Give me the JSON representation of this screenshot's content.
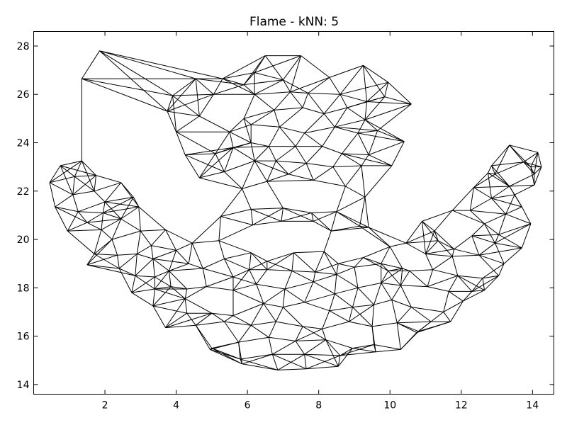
{
  "chart_data": {
    "type": "graph",
    "title": "Flame - kNN: 5",
    "xlabel": "",
    "ylabel": "",
    "xlim": [
      0.0,
      14.6
    ],
    "ylim": [
      13.6,
      28.6
    ],
    "x_ticks": [
      2,
      4,
      6,
      8,
      10,
      12,
      14
    ],
    "y_ticks": [
      14,
      16,
      18,
      20,
      22,
      24,
      26,
      28
    ],
    "grid": false,
    "legend": "none",
    "edge_color": "#000000",
    "nodes": [
      [
        1.85,
        27.8
      ],
      [
        1.35,
        26.65
      ],
      [
        5.3,
        26.65
      ],
      [
        6.5,
        27.6
      ],
      [
        7.5,
        27.6
      ],
      [
        6.2,
        26.9
      ],
      [
        9.25,
        27.2
      ],
      [
        9.95,
        26.5
      ],
      [
        10.6,
        25.6
      ],
      [
        8.3,
        26.7
      ],
      [
        7.0,
        26.6
      ],
      [
        5.9,
        26.4
      ],
      [
        3.9,
        25.95
      ],
      [
        4.55,
        26.65
      ],
      [
        5.05,
        26.0
      ],
      [
        6.2,
        26.0
      ],
      [
        7.2,
        26.1
      ],
      [
        7.7,
        26.05
      ],
      [
        8.6,
        26.0
      ],
      [
        9.35,
        25.7
      ],
      [
        9.85,
        25.9
      ],
      [
        10.4,
        24.05
      ],
      [
        3.75,
        25.3
      ],
      [
        4.65,
        25.1
      ],
      [
        5.9,
        25.0
      ],
      [
        6.75,
        25.35
      ],
      [
        7.55,
        25.45
      ],
      [
        8.15,
        25.2
      ],
      [
        8.8,
        25.45
      ],
      [
        9.3,
        24.95
      ],
      [
        9.65,
        24.5
      ],
      [
        4.0,
        24.45
      ],
      [
        5.5,
        24.45
      ],
      [
        6.1,
        24.75
      ],
      [
        6.9,
        24.65
      ],
      [
        7.6,
        24.4
      ],
      [
        8.45,
        24.65
      ],
      [
        9.1,
        24.4
      ],
      [
        4.25,
        23.5
      ],
      [
        5.1,
        23.55
      ],
      [
        5.6,
        23.8
      ],
      [
        6.1,
        24.0
      ],
      [
        6.6,
        23.85
      ],
      [
        7.35,
        23.85
      ],
      [
        8.1,
        23.85
      ],
      [
        8.65,
        23.55
      ],
      [
        9.4,
        23.5
      ],
      [
        10.05,
        23.05
      ],
      [
        4.65,
        22.55
      ],
      [
        5.35,
        22.8
      ],
      [
        6.2,
        23.25
      ],
      [
        6.8,
        23.25
      ],
      [
        7.65,
        23.15
      ],
      [
        8.4,
        23.0
      ],
      [
        9.2,
        23.05
      ],
      [
        5.85,
        22.1
      ],
      [
        6.55,
        22.4
      ],
      [
        7.15,
        22.7
      ],
      [
        7.85,
        22.45
      ],
      [
        8.75,
        22.2
      ],
      [
        9.3,
        21.75
      ],
      [
        0.45,
        22.35
      ],
      [
        0.75,
        23.05
      ],
      [
        1.35,
        23.25
      ],
      [
        1.15,
        22.6
      ],
      [
        1.75,
        22.65
      ],
      [
        2.45,
        22.35
      ],
      [
        1.7,
        22.0
      ],
      [
        1.1,
        21.85
      ],
      [
        2.0,
        21.55
      ],
      [
        2.8,
        21.75
      ],
      [
        0.6,
        21.35
      ],
      [
        1.25,
        21.15
      ],
      [
        1.95,
        21.1
      ],
      [
        2.95,
        21.35
      ],
      [
        1.5,
        20.7
      ],
      [
        2.45,
        20.85
      ],
      [
        0.95,
        20.35
      ],
      [
        1.9,
        20.4
      ],
      [
        2.2,
        20.0
      ],
      [
        3.0,
        20.35
      ],
      [
        3.7,
        20.4
      ],
      [
        3.3,
        19.75
      ],
      [
        4.0,
        19.55
      ],
      [
        1.7,
        19.4
      ],
      [
        2.35,
        19.35
      ],
      [
        2.9,
        19.4
      ],
      [
        3.35,
        19.2
      ],
      [
        4.35,
        19.0
      ],
      [
        1.5,
        18.95
      ],
      [
        2.4,
        18.8
      ],
      [
        3.8,
        18.7
      ],
      [
        2.85,
        18.5
      ],
      [
        3.4,
        18.45
      ],
      [
        3.85,
        18.05
      ],
      [
        2.75,
        17.8
      ],
      [
        3.4,
        17.95
      ],
      [
        4.3,
        17.95
      ],
      [
        3.35,
        17.25
      ],
      [
        4.25,
        17.55
      ],
      [
        5.25,
        20.95
      ],
      [
        6.1,
        21.25
      ],
      [
        7.0,
        21.3
      ],
      [
        7.8,
        21.1
      ],
      [
        8.5,
        21.15
      ],
      [
        5.2,
        19.95
      ],
      [
        6.15,
        20.6
      ],
      [
        6.95,
        20.75
      ],
      [
        7.85,
        20.75
      ],
      [
        8.35,
        20.35
      ],
      [
        9.15,
        20.55
      ],
      [
        9.4,
        20.5
      ],
      [
        4.45,
        19.85
      ],
      [
        5.35,
        19.2
      ],
      [
        6.1,
        19.45
      ],
      [
        6.55,
        19.1
      ],
      [
        7.3,
        19.45
      ],
      [
        8.15,
        19.5
      ],
      [
        8.55,
        19.0
      ],
      [
        9.25,
        19.25
      ],
      [
        4.75,
        18.8
      ],
      [
        5.6,
        18.45
      ],
      [
        6.05,
        18.75
      ],
      [
        6.55,
        18.75
      ],
      [
        7.25,
        18.7
      ],
      [
        7.9,
        18.65
      ],
      [
        8.5,
        18.55
      ],
      [
        9.0,
        18.85
      ],
      [
        9.75,
        19.0
      ],
      [
        4.85,
        18.05
      ],
      [
        5.6,
        17.9
      ],
      [
        6.25,
        18.15
      ],
      [
        7.05,
        17.95
      ],
      [
        7.85,
        18.25
      ],
      [
        8.45,
        17.75
      ],
      [
        9.1,
        18.0
      ],
      [
        9.75,
        18.2
      ],
      [
        10.3,
        18.1
      ],
      [
        4.3,
        16.95
      ],
      [
        5.0,
        16.95
      ],
      [
        5.6,
        16.85
      ],
      [
        6.45,
        17.35
      ],
      [
        7.0,
        17.2
      ],
      [
        7.6,
        17.4
      ],
      [
        8.3,
        17.05
      ],
      [
        8.95,
        17.2
      ],
      [
        9.55,
        17.3
      ],
      [
        10.05,
        17.5
      ],
      [
        10.6,
        17.2
      ],
      [
        3.7,
        16.35
      ],
      [
        4.55,
        16.45
      ],
      [
        5.35,
        16.6
      ],
      [
        6.1,
        16.45
      ],
      [
        6.8,
        16.6
      ],
      [
        7.55,
        16.4
      ],
      [
        8.1,
        16.3
      ],
      [
        8.85,
        16.6
      ],
      [
        9.5,
        16.4
      ],
      [
        10.2,
        16.55
      ],
      [
        10.75,
        16.15
      ],
      [
        5.0,
        15.5
      ],
      [
        5.75,
        15.75
      ],
      [
        6.6,
        15.95
      ],
      [
        7.35,
        15.8
      ],
      [
        8.2,
        15.85
      ],
      [
        8.95,
        15.5
      ],
      [
        9.55,
        15.65
      ],
      [
        4.95,
        15.45
      ],
      [
        5.8,
        15.05
      ],
      [
        6.7,
        15.25
      ],
      [
        7.6,
        15.25
      ],
      [
        8.6,
        15.2
      ],
      [
        9.6,
        15.35
      ],
      [
        5.85,
        14.85
      ],
      [
        6.85,
        14.6
      ],
      [
        7.65,
        14.65
      ],
      [
        8.55,
        14.75
      ],
      [
        10.3,
        15.45
      ],
      [
        10.8,
        16.2
      ],
      [
        11.15,
        16.6
      ],
      [
        10.0,
        19.7
      ],
      [
        10.45,
        19.85
      ],
      [
        10.9,
        20.75
      ],
      [
        11.25,
        20.35
      ],
      [
        11.75,
        21.2
      ],
      [
        12.35,
        22.15
      ],
      [
        12.75,
        22.75
      ],
      [
        13.35,
        23.9
      ],
      [
        13.75,
        23.2
      ],
      [
        14.15,
        23.6
      ],
      [
        14.25,
        23.0
      ],
      [
        14.05,
        22.25
      ],
      [
        13.5,
        21.85
      ],
      [
        12.85,
        21.7
      ],
      [
        12.25,
        21.2
      ],
      [
        13.25,
        21.05
      ],
      [
        13.7,
        21.35
      ],
      [
        12.65,
        20.65
      ],
      [
        13.05,
        20.2
      ],
      [
        13.95,
        20.65
      ],
      [
        11.35,
        19.95
      ],
      [
        11.8,
        19.6
      ],
      [
        12.3,
        20.15
      ],
      [
        12.95,
        19.85
      ],
      [
        13.7,
        19.65
      ],
      [
        11.0,
        19.4
      ],
      [
        11.75,
        19.3
      ],
      [
        12.5,
        19.35
      ],
      [
        13.2,
        19.0
      ],
      [
        10.55,
        18.7
      ],
      [
        11.2,
        18.75
      ],
      [
        11.9,
        18.5
      ],
      [
        12.6,
        18.4
      ],
      [
        13.05,
        18.5
      ],
      [
        11.05,
        18.05
      ],
      [
        11.65,
        17.85
      ],
      [
        12.3,
        17.85
      ],
      [
        12.65,
        17.9
      ],
      [
        11.5,
        17.0
      ],
      [
        12.05,
        17.45
      ],
      [
        11.7,
        16.6
      ],
      [
        10.35,
        18.8
      ],
      [
        9.95,
        18.7
      ],
      [
        12.95,
        22.7
      ],
      [
        13.35,
        22.2
      ],
      [
        13.95,
        23.0
      ],
      [
        12.85,
        23.05
      ],
      [
        14.05,
        22.7
      ]
    ],
    "k": 5
  }
}
